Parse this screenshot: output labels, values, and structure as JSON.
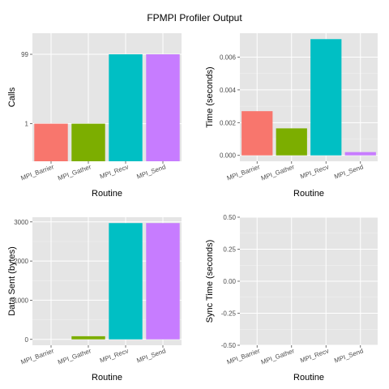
{
  "title": "FPMPI Profiler Output",
  "colors": {
    "MPI_Barrier": "#f8766d",
    "MPI_Gather": "#7cae00",
    "MPI_Recv": "#00bfc4",
    "MPI_Send": "#c77cff"
  },
  "chart_data": [
    {
      "type": "bar",
      "categories": [
        "MPI_Barrier",
        "MPI_Gather",
        "MPI_Recv",
        "MPI_Send"
      ],
      "values": [
        1,
        1,
        99,
        99
      ],
      "xlabel": "Routine",
      "ylabel": "Calls",
      "scale": "log",
      "yticks": [
        1,
        99
      ],
      "ytick_labels": [
        "1",
        "99"
      ],
      "ylim": [
        0.083,
        400
      ],
      "grid": true
    },
    {
      "type": "bar",
      "categories": [
        "MPI_Barrier",
        "MPI_Gather",
        "MPI_Recv",
        "MPI_Send"
      ],
      "values": [
        0.0027,
        0.00165,
        0.0071,
        0.0002
      ],
      "xlabel": "Routine",
      "ylabel": "Time (seconds)",
      "scale": "linear",
      "yticks": [
        0,
        0.002,
        0.004,
        0.006
      ],
      "ytick_labels": [
        "0.000",
        "0.002",
        "0.004",
        "0.006"
      ],
      "ylim": [
        -0.00036,
        0.00746
      ],
      "grid": true
    },
    {
      "type": "bar",
      "categories": [
        "MPI_Barrier",
        "MPI_Gather",
        "MPI_Recv",
        "MPI_Send"
      ],
      "values": [
        0,
        80,
        2970,
        2970
      ],
      "xlabel": "Routine",
      "ylabel": "Data Sent (bytes)",
      "scale": "linear",
      "yticks": [
        0,
        1000,
        2000,
        3000
      ],
      "ytick_labels": [
        "0",
        "1000",
        "2000",
        "3000"
      ],
      "ylim": [
        -150,
        3120
      ],
      "grid": true
    },
    {
      "type": "bar",
      "categories": [
        "MPI_Barrier",
        "MPI_Gather",
        "MPI_Recv",
        "MPI_Send"
      ],
      "values": [
        0,
        0,
        0,
        0
      ],
      "xlabel": "Routine",
      "ylabel": "Sync Time (seconds)",
      "scale": "linear",
      "yticks": [
        -0.5,
        -0.25,
        0,
        0.25,
        0.5
      ],
      "ytick_labels": [
        "-0.50",
        "-0.25",
        "0.00",
        "0.25",
        "0.50"
      ],
      "ylim": [
        -0.5,
        0.5
      ],
      "grid": true
    }
  ]
}
